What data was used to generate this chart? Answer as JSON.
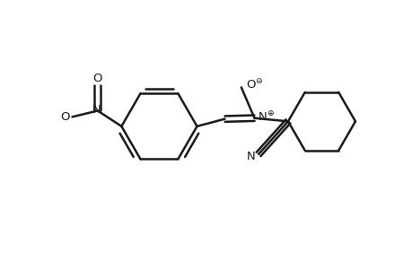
{
  "bg_color": "#ffffff",
  "line_color": "#1a1a1a",
  "line_width": 1.8,
  "figsize": [
    4.6,
    3.0
  ],
  "dpi": 100,
  "xlim": [
    0,
    10
  ],
  "ylim": [
    0,
    6.5
  ]
}
